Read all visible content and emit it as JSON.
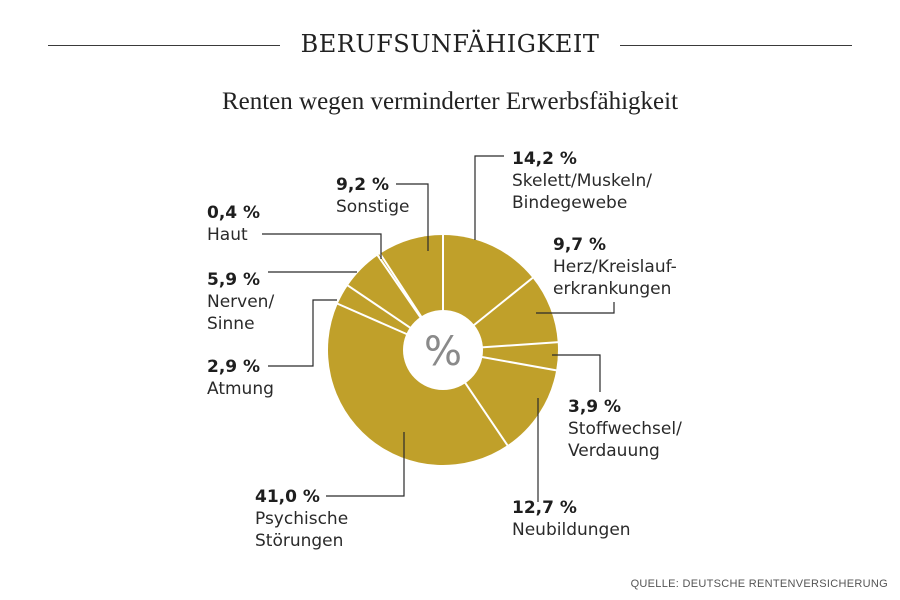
{
  "header": {
    "title": "BERUFSUNFÄHIGKEIT",
    "subtitle": "Renten wegen verminderter  Erwerbsfähigkeit"
  },
  "source": "QUELLE: DEUTSCHE RENTENVERSICHERUNG",
  "chart_data": {
    "type": "pie",
    "center_label": "%",
    "slice_color": "#c0a02a",
    "separator_color": "#ffffff",
    "slices": [
      {
        "label": "Skelett/Muskeln/\nBindegewebe",
        "value": 14.2,
        "value_label": "14,2 %"
      },
      {
        "label": "Herz/Kreislauf-\nerkrankungen",
        "value": 9.7,
        "value_label": "9,7 %"
      },
      {
        "label": "Stoffwechsel/\nVerdauung",
        "value": 3.9,
        "value_label": "3,9 %"
      },
      {
        "label": "Neubildungen",
        "value": 12.7,
        "value_label": "12,7 %"
      },
      {
        "label": "Psychische\nStörungen",
        "value": 41.0,
        "value_label": "41,0 %"
      },
      {
        "label": "Atmung",
        "value": 2.9,
        "value_label": "2,9 %"
      },
      {
        "label": "Nerven/\nSinne",
        "value": 5.9,
        "value_label": "5,9 %"
      },
      {
        "label": "Haut",
        "value": 0.4,
        "value_label": "0,4 %"
      },
      {
        "label": "Sonstige",
        "value": 9.2,
        "value_label": "9,2 %"
      }
    ]
  }
}
